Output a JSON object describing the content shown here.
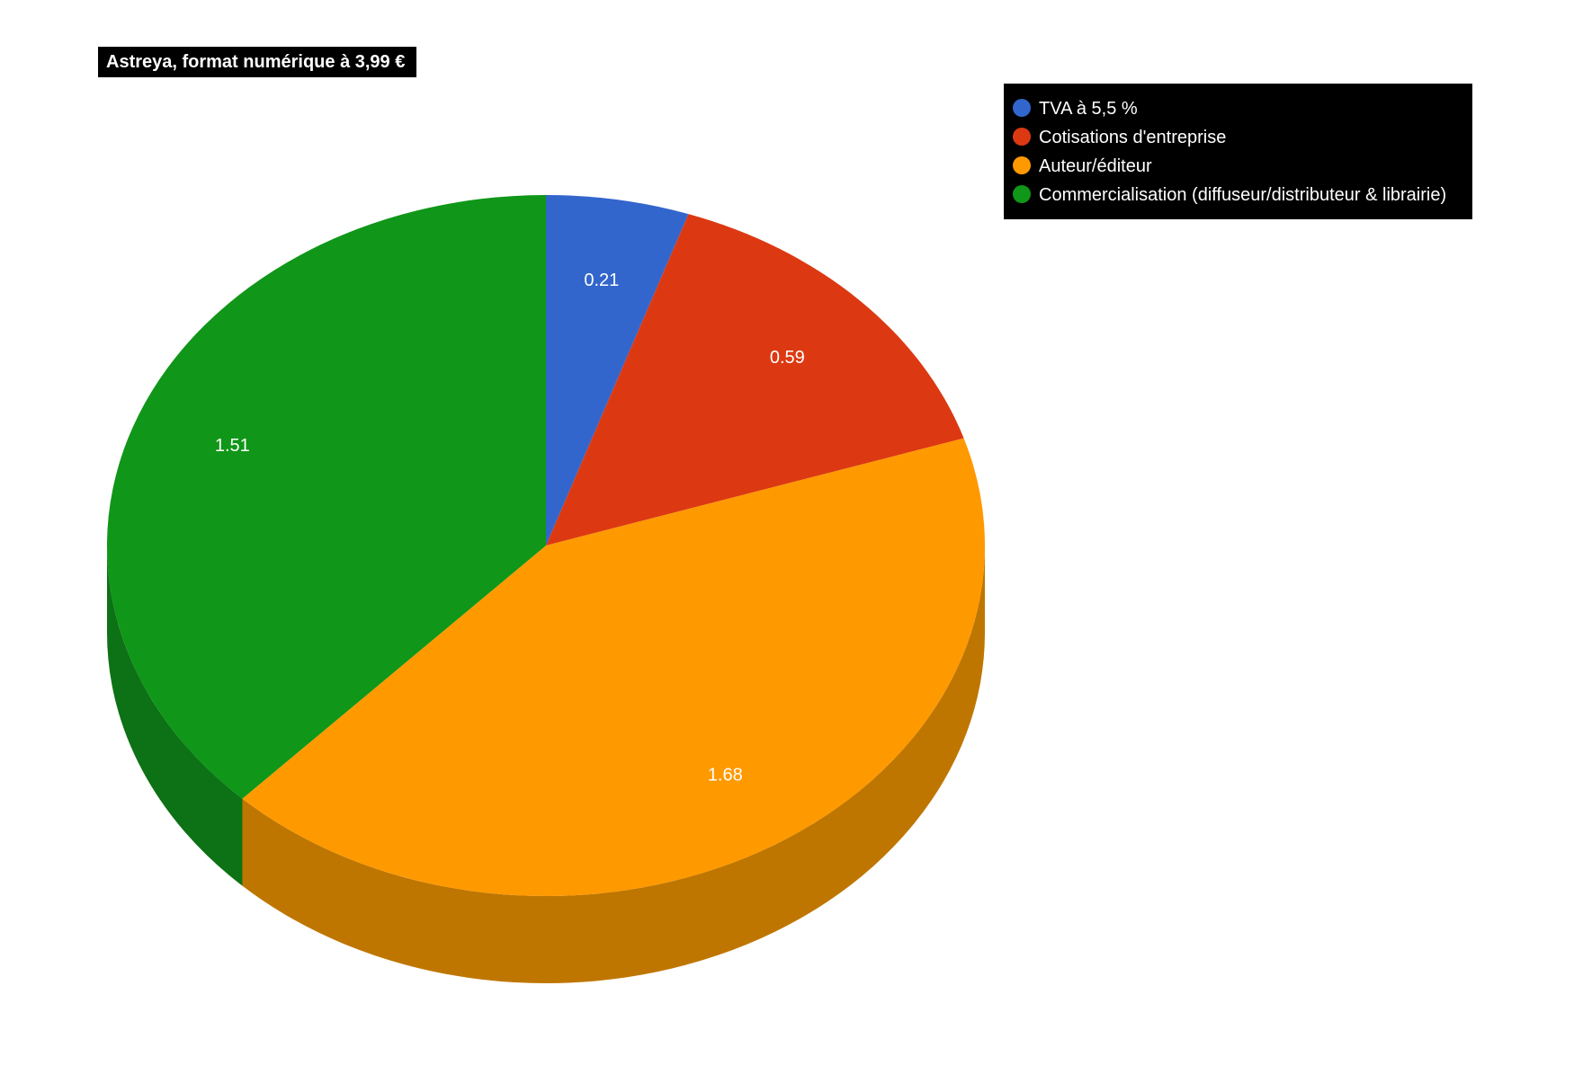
{
  "chart_data": {
    "type": "pie",
    "style": "3d",
    "title": "Astreya, format numérique à 3,99 €",
    "categories": [
      "TVA à 5,5 %",
      "Cotisations d'entreprise",
      "Auteur/éditeur",
      "Commercialisation (diffuseur/distributeur & librairie)"
    ],
    "values": [
      0.21,
      0.59,
      1.68,
      1.51
    ],
    "data_labels": [
      "0.21",
      "0.59",
      "1.68",
      "1.51"
    ],
    "colors": [
      "#3366cc",
      "#dc3912",
      "#ff9900",
      "#109618"
    ],
    "side_colors": [
      "#2c56ac",
      "#a82c0e",
      "#bf7600",
      "#0d7115"
    ],
    "legend_position": "top-right",
    "legend_background": "#000000",
    "legend_text_color": "#ffffff",
    "title_background": "#000000",
    "title_text_color": "#ffffff"
  }
}
